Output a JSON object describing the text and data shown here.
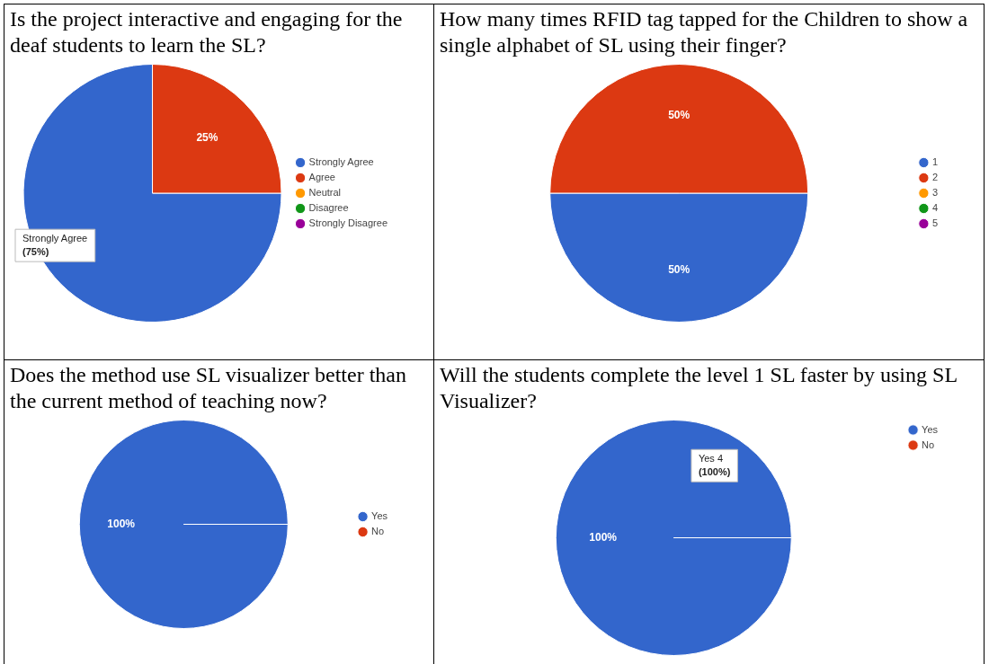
{
  "chart_data": [
    {
      "type": "pie",
      "title": "Is the project interactive and engaging for the deaf students to learn the SL?",
      "categories": [
        "Strongly Agree",
        "Agree",
        "Neutral",
        "Disagree",
        "Strongly Disagree"
      ],
      "values": [
        75,
        25,
        0,
        0,
        0
      ],
      "colors": [
        "#3366cc",
        "#dc3912",
        "#ff9900",
        "#109618",
        "#990099"
      ],
      "value_labels": [
        null,
        "25%",
        null,
        null,
        null
      ],
      "legend": "right",
      "annotations": [
        "Strongly Agree (75%)"
      ]
    },
    {
      "type": "pie",
      "title": "How many times RFID tag tapped for the Children to show a single alphabet of SL using their finger?",
      "categories": [
        "1",
        "2",
        "3",
        "4",
        "5"
      ],
      "values": [
        50,
        50,
        0,
        0,
        0
      ],
      "colors": [
        "#3366cc",
        "#dc3912",
        "#ff9900",
        "#109618",
        "#990099"
      ],
      "value_labels": [
        "50%",
        "50%",
        null,
        null,
        null
      ],
      "legend": "right"
    },
    {
      "type": "pie",
      "title": "Does the method use SL visualizer better than the current method of teaching now?",
      "categories": [
        "Yes",
        "No"
      ],
      "values": [
        100,
        0
      ],
      "colors": [
        "#3366cc",
        "#dc3912"
      ],
      "value_labels": [
        "100%",
        null
      ],
      "legend": "right"
    },
    {
      "type": "pie",
      "title": "Will the students complete the level 1 SL faster by using SL Visualizer?",
      "categories": [
        "Yes",
        "No"
      ],
      "values": [
        100,
        0
      ],
      "colors": [
        "#3366cc",
        "#dc3912"
      ],
      "value_labels": [
        "100%",
        null
      ],
      "legend": "top right",
      "annotations": [
        "Yes 4 (100%)"
      ]
    }
  ]
}
